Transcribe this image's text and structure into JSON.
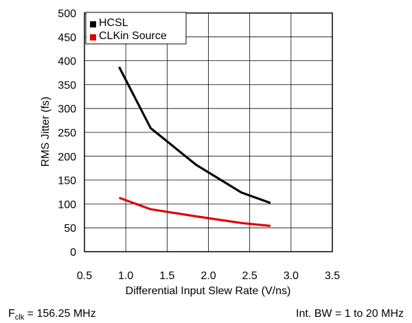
{
  "chart_data": {
    "type": "line",
    "xlabel": "Differential Input Slew Rate (V/ns)",
    "ylabel": "RMS Jitter (fs)",
    "xlim": [
      0.5,
      3.5
    ],
    "ylim": [
      0,
      500
    ],
    "x_ticks": [
      "0.5",
      "1.0",
      "1.5",
      "2.0",
      "2.5",
      "3.0",
      "3.5"
    ],
    "y_ticks": [
      "0",
      "50",
      "100",
      "150",
      "200",
      "250",
      "300",
      "350",
      "400",
      "450",
      "500"
    ],
    "x_tick_values": [
      0.5,
      1.0,
      1.5,
      2.0,
      2.5,
      3.0,
      3.5
    ],
    "y_tick_values": [
      0,
      50,
      100,
      150,
      200,
      250,
      300,
      350,
      400,
      450,
      500
    ],
    "grid": true,
    "legend_position": "top-left",
    "series": [
      {
        "name": "HCSL",
        "color": "#000000",
        "x": [
          0.92,
          1.3,
          1.85,
          2.4,
          2.75
        ],
        "y": [
          387,
          259,
          182,
          124,
          102
        ]
      },
      {
        "name": "CLKin Source",
        "color": "#e00000",
        "x": [
          0.92,
          1.3,
          1.85,
          2.4,
          2.75
        ],
        "y": [
          113,
          89,
          74,
          60,
          54
        ]
      }
    ]
  },
  "footer": {
    "left_main": "F",
    "left_sub": "clk",
    "left_rest": " = 156.25 MHz",
    "right": "Int. BW = 1 to 20 MHz"
  }
}
